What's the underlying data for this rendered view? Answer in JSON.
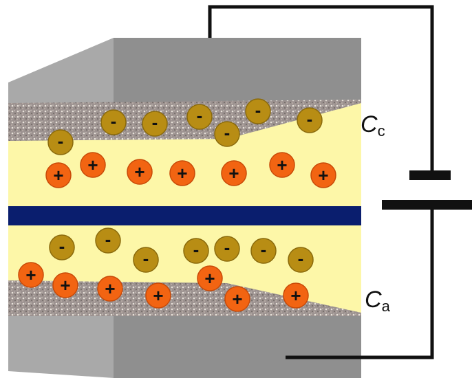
{
  "labels": {
    "cathode": {
      "symbol": "C",
      "subscript": "c"
    },
    "anode": {
      "symbol": "C",
      "subscript": "a"
    }
  },
  "ions": {
    "negative_sign": "-",
    "positive_sign": "+"
  }
}
